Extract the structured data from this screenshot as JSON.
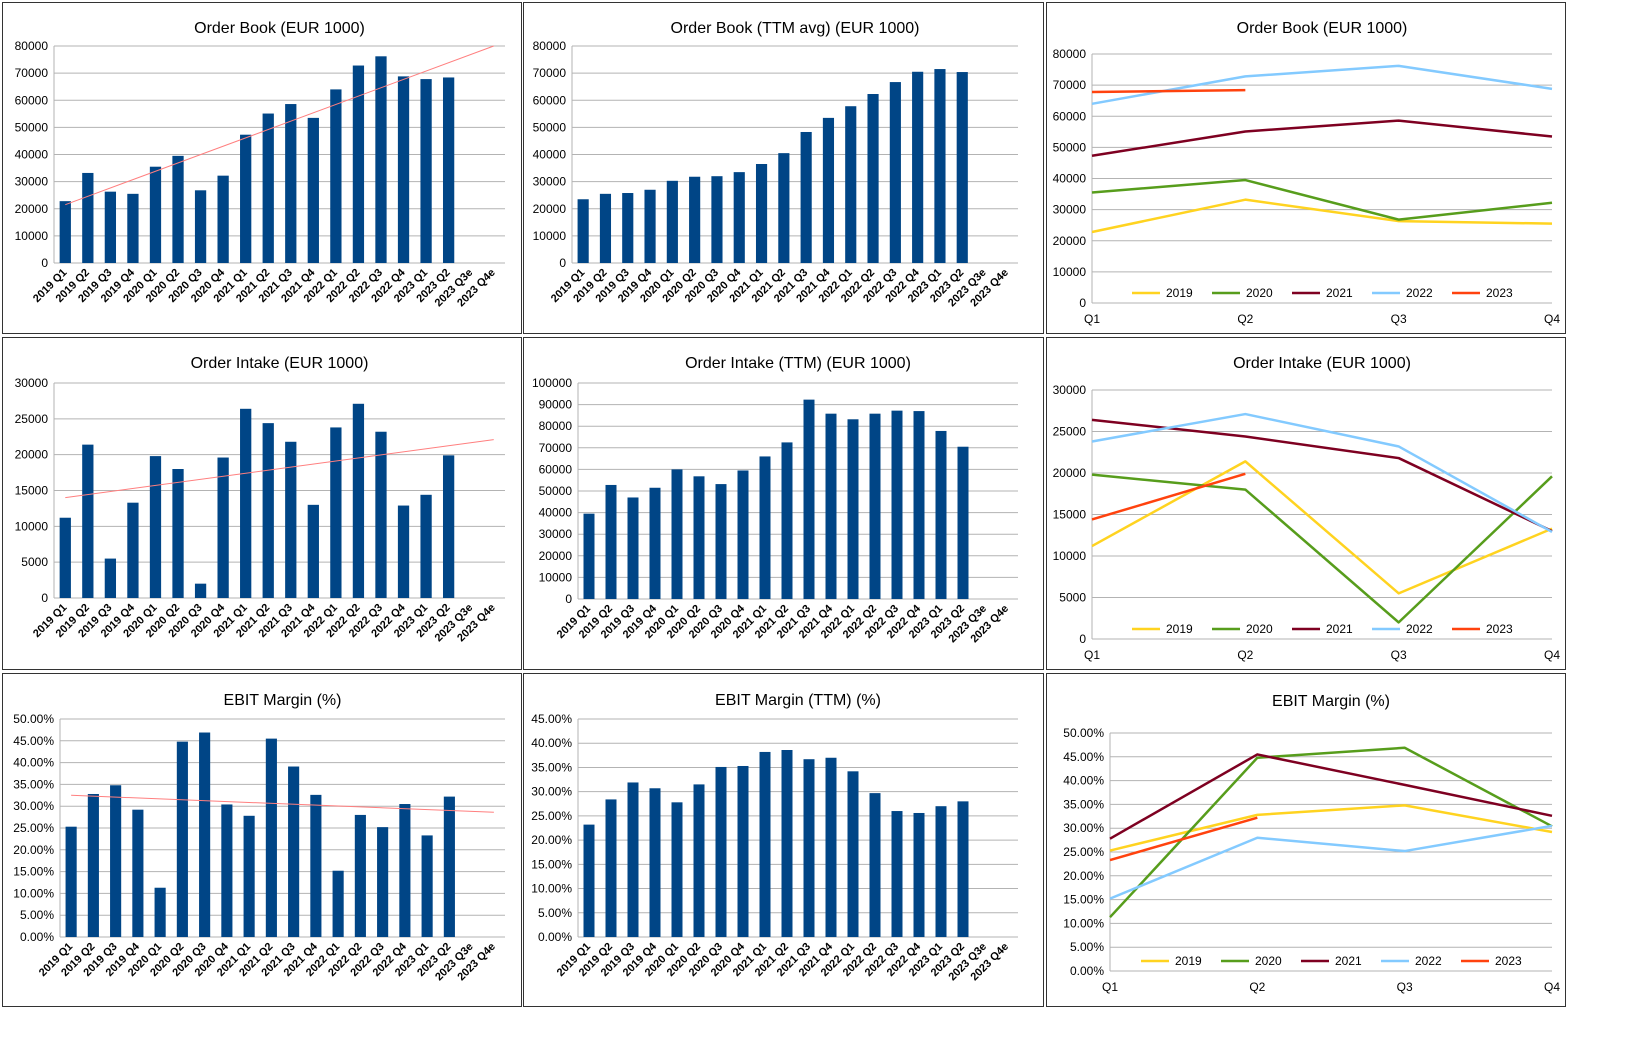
{
  "colors": {
    "bar": "#004586",
    "trend": "#ff7f7f",
    "grid": "#b3b3b3",
    "axis": "#b3b3b3",
    "2019": "#ffd320",
    "2020": "#579d1c",
    "2021": "#7e0021",
    "2022": "#83caff",
    "2023": "#ff420e"
  },
  "chart_data": [
    {
      "id": "order-book",
      "type": "bar",
      "title": "Order Book (EUR 1000)",
      "categories": [
        "2019 Q1",
        "2019 Q2",
        "2019 Q3",
        "2019 Q4",
        "2020 Q1",
        "2020 Q2",
        "2020 Q3",
        "2020 Q4",
        "2021 Q1",
        "2021 Q2",
        "2021 Q3",
        "2021 Q4",
        "2022 Q1",
        "2022 Q2",
        "2022 Q3",
        "2022 Q4",
        "2023 Q1",
        "2023 Q2",
        "2023 Q3e",
        "2023 Q4e"
      ],
      "values": [
        22800,
        33200,
        26300,
        25500,
        35500,
        39500,
        26800,
        32200,
        47300,
        55100,
        58600,
        53500,
        64000,
        72800,
        76200,
        68800,
        67800,
        68400,
        null,
        null
      ],
      "ylim": [
        0,
        80000
      ],
      "yticks": [
        "0",
        "10000",
        "20000",
        "30000",
        "40000",
        "50000",
        "60000",
        "70000",
        "80000"
      ],
      "trendline": true,
      "trend_endpoints": [
        21500,
        80000
      ]
    },
    {
      "id": "order-book-ttm",
      "type": "bar",
      "title": "Order Book (TTM avg) (EUR 1000)",
      "categories": [
        "2019 Q1",
        "2019 Q2",
        "2019 Q3",
        "2019 Q4",
        "2020 Q1",
        "2020 Q2",
        "2020 Q3",
        "2020 Q4",
        "2021 Q1",
        "2021 Q2",
        "2021 Q3",
        "2021 Q4",
        "2022 Q1",
        "2022 Q2",
        "2022 Q3",
        "2022 Q4",
        "2023 Q1",
        "2023 Q2",
        "2023 Q3e",
        "2023 Q4e"
      ],
      "values": [
        23500,
        25500,
        25800,
        27000,
        30300,
        31800,
        32000,
        33500,
        36500,
        40500,
        48300,
        53500,
        57800,
        62300,
        66700,
        70500,
        71500,
        70400,
        null,
        null
      ],
      "ylim": [
        0,
        80000
      ],
      "yticks": [
        "0",
        "10000",
        "20000",
        "30000",
        "40000",
        "50000",
        "60000",
        "70000",
        "80000"
      ],
      "trendline": false
    },
    {
      "id": "order-book-by-quarter",
      "type": "line",
      "title": "Order Book (EUR 1000)",
      "categories": [
        "Q1",
        "Q2",
        "Q3",
        "Q4"
      ],
      "series": [
        {
          "name": "2019",
          "values": [
            22800,
            33200,
            26300,
            25500
          ]
        },
        {
          "name": "2020",
          "values": [
            35500,
            39500,
            26800,
            32200
          ]
        },
        {
          "name": "2021",
          "values": [
            47300,
            55100,
            58600,
            53500
          ]
        },
        {
          "name": "2022",
          "values": [
            64000,
            72800,
            76200,
            68800
          ]
        },
        {
          "name": "2023",
          "values": [
            67800,
            68400,
            null,
            null
          ]
        }
      ],
      "ylim": [
        0,
        80000
      ],
      "yticks": [
        "0",
        "10000",
        "20000",
        "30000",
        "40000",
        "50000",
        "60000",
        "70000",
        "80000"
      ],
      "legend": "bottom"
    },
    {
      "id": "order-intake",
      "type": "bar",
      "title": "Order Intake (EUR 1000)",
      "categories": [
        "2019 Q1",
        "2019 Q2",
        "2019 Q3",
        "2019 Q4",
        "2020 Q1",
        "2020 Q2",
        "2020 Q3",
        "2020 Q4",
        "2021 Q1",
        "2021 Q2",
        "2021 Q3",
        "2021 Q4",
        "2022 Q1",
        "2022 Q2",
        "2022 Q3",
        "2022 Q4",
        "2023 Q1",
        "2023 Q2",
        "2023 Q3e",
        "2023 Q4e"
      ],
      "values": [
        11200,
        21400,
        5500,
        13300,
        19800,
        18000,
        2000,
        19600,
        26400,
        24400,
        21800,
        13000,
        23800,
        27100,
        23200,
        12900,
        14400,
        19900,
        null,
        null
      ],
      "ylim": [
        0,
        30000
      ],
      "yticks": [
        "0",
        "5000",
        "10000",
        "15000",
        "20000",
        "25000",
        "30000"
      ],
      "trendline": true,
      "trend_endpoints": [
        14000,
        22100
      ]
    },
    {
      "id": "order-intake-ttm",
      "type": "bar",
      "title": "Order Intake (TTM) (EUR 1000)",
      "categories": [
        "2019 Q1",
        "2019 Q2",
        "2019 Q3",
        "2019 Q4",
        "2020 Q1",
        "2020 Q2",
        "2020 Q3",
        "2020 Q4",
        "2021 Q1",
        "2021 Q2",
        "2021 Q3",
        "2021 Q4",
        "2022 Q1",
        "2022 Q2",
        "2022 Q3",
        "2022 Q4",
        "2023 Q1",
        "2023 Q2",
        "2023 Q3e",
        "2023 Q4e"
      ],
      "values": [
        39500,
        52800,
        47000,
        51500,
        60000,
        56800,
        53200,
        59500,
        66000,
        72500,
        92300,
        85800,
        83200,
        85800,
        87200,
        87000,
        77800,
        70500,
        null,
        null
      ],
      "ylim": [
        0,
        100000
      ],
      "yticks": [
        "0",
        "10000",
        "20000",
        "30000",
        "40000",
        "50000",
        "60000",
        "70000",
        "80000",
        "90000",
        "100000"
      ],
      "trendline": false
    },
    {
      "id": "order-intake-by-quarter",
      "type": "line",
      "title": "Order Intake (EUR 1000)",
      "categories": [
        "Q1",
        "Q2",
        "Q3",
        "Q4"
      ],
      "series": [
        {
          "name": "2019",
          "values": [
            11200,
            21400,
            5500,
            13300
          ]
        },
        {
          "name": "2020",
          "values": [
            19800,
            18000,
            2000,
            19600
          ]
        },
        {
          "name": "2021",
          "values": [
            26400,
            24400,
            21800,
            13000
          ]
        },
        {
          "name": "2022",
          "values": [
            23800,
            27100,
            23200,
            12900
          ]
        },
        {
          "name": "2023",
          "values": [
            14400,
            19900,
            null,
            null
          ]
        }
      ],
      "ylim": [
        0,
        30000
      ],
      "yticks": [
        "0",
        "5000",
        "10000",
        "15000",
        "20000",
        "25000",
        "30000"
      ],
      "legend": "bottom"
    },
    {
      "id": "ebit-margin",
      "type": "bar",
      "title": "EBIT Margin (%)",
      "categories": [
        "2019 Q1",
        "2019 Q2",
        "2019 Q3",
        "2019 Q4",
        "2020 Q1",
        "2020 Q2",
        "2020 Q3",
        "2020 Q4",
        "2021 Q1",
        "2021 Q2",
        "2021 Q3",
        "2021 Q4",
        "2022 Q1",
        "2022 Q2",
        "2022 Q3",
        "2022 Q4",
        "2023 Q1",
        "2023 Q2",
        "2023 Q3e",
        "2023 Q4e"
      ],
      "values": [
        25.3,
        32.8,
        34.8,
        29.2,
        11.3,
        44.8,
        46.9,
        30.4,
        27.8,
        45.5,
        39.1,
        32.6,
        15.2,
        28.0,
        25.2,
        30.5,
        23.3,
        32.2,
        null,
        null
      ],
      "ylim": [
        0,
        50
      ],
      "yticks": [
        "0.00%",
        "5.00%",
        "10.00%",
        "15.00%",
        "20.00%",
        "25.00%",
        "30.00%",
        "35.00%",
        "40.00%",
        "45.00%",
        "50.00%"
      ],
      "trendline": true,
      "trend_endpoints": [
        32.5,
        28.6
      ]
    },
    {
      "id": "ebit-margin-ttm",
      "type": "bar",
      "title": "EBIT Margin (TTM) (%)",
      "categories": [
        "2019 Q1",
        "2019 Q2",
        "2019 Q3",
        "2019 Q4",
        "2020 Q1",
        "2020 Q2",
        "2020 Q3",
        "2020 Q4",
        "2021 Q1",
        "2021 Q2",
        "2021 Q3",
        "2021 Q4",
        "2022 Q1",
        "2022 Q2",
        "2022 Q3",
        "2022 Q4",
        "2023 Q1",
        "2023 Q2",
        "2023 Q3e",
        "2023 Q4e"
      ],
      "values": [
        23.2,
        28.4,
        31.9,
        30.7,
        27.8,
        31.5,
        35.1,
        35.3,
        38.2,
        38.6,
        36.7,
        37.0,
        34.2,
        29.7,
        26.0,
        25.6,
        27.0,
        28.0,
        null,
        null
      ],
      "ylim": [
        0,
        45
      ],
      "yticks": [
        "0.00%",
        "5.00%",
        "10.00%",
        "15.00%",
        "20.00%",
        "25.00%",
        "30.00%",
        "35.00%",
        "40.00%",
        "45.00%"
      ],
      "trendline": false
    },
    {
      "id": "ebit-margin-by-quarter",
      "type": "line",
      "title": "EBIT Margin (%)",
      "categories": [
        "Q1",
        "Q2",
        "Q3",
        "Q4"
      ],
      "series": [
        {
          "name": "2019",
          "values": [
            25.3,
            32.8,
            34.8,
            29.2
          ]
        },
        {
          "name": "2020",
          "values": [
            11.3,
            44.8,
            46.9,
            30.4
          ]
        },
        {
          "name": "2021",
          "values": [
            27.8,
            45.5,
            39.1,
            32.6
          ]
        },
        {
          "name": "2022",
          "values": [
            15.2,
            28.0,
            25.2,
            30.5
          ]
        },
        {
          "name": "2023",
          "values": [
            23.3,
            32.2,
            null,
            null
          ]
        }
      ],
      "ylim": [
        0,
        50
      ],
      "yticks": [
        "0.00%",
        "5.00%",
        "10.00%",
        "15.00%",
        "20.00%",
        "25.00%",
        "30.00%",
        "35.00%",
        "40.00%",
        "45.00%",
        "50.00%"
      ],
      "legend": "bottom"
    }
  ]
}
